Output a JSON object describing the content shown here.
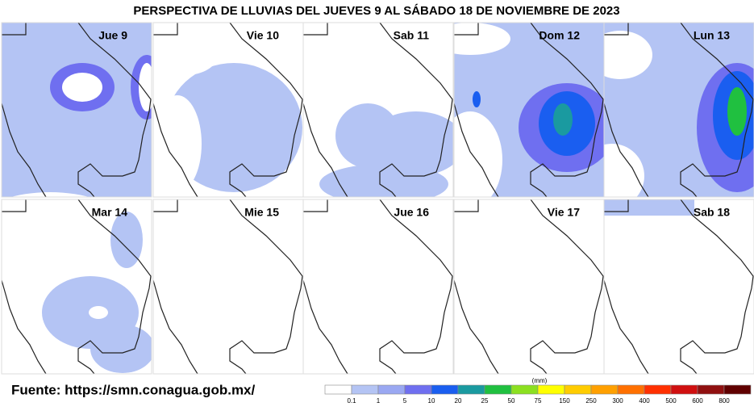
{
  "title": "PERSPECTIVA DE LLUVIAS DEL JUEVES 9 AL SÁBADO 18 DE NOVIEMBRE DE 2023",
  "panels": [
    {
      "label": "Jue 9"
    },
    {
      "label": "Vie 10"
    },
    {
      "label": "Sab 11"
    },
    {
      "label": "Dom 12"
    },
    {
      "label": "Lun 13"
    },
    {
      "label": "Mar 14"
    },
    {
      "label": "Mie 15"
    },
    {
      "label": "Jue 16"
    },
    {
      "label": "Vie 17"
    },
    {
      "label": "Sab 18"
    }
  ],
  "source": "Fuente: https://smn.conagua.gob.mx/",
  "legend": {
    "unit": "(mm)",
    "labels": [
      0.1,
      1,
      5,
      10,
      20,
      25,
      50,
      75,
      150,
      250,
      300,
      400,
      500,
      600,
      800
    ],
    "colors": [
      "#ffffff",
      "#b4c4f4",
      "#9aa8f2",
      "#6f6ff0",
      "#1a5ef0",
      "#1a9aa0",
      "#20c040",
      "#8ce020",
      "#ffff00",
      "#ffcc00",
      "#ffa000",
      "#ff7000",
      "#ff3000",
      "#d01010",
      "#901010",
      "#600000"
    ]
  }
}
